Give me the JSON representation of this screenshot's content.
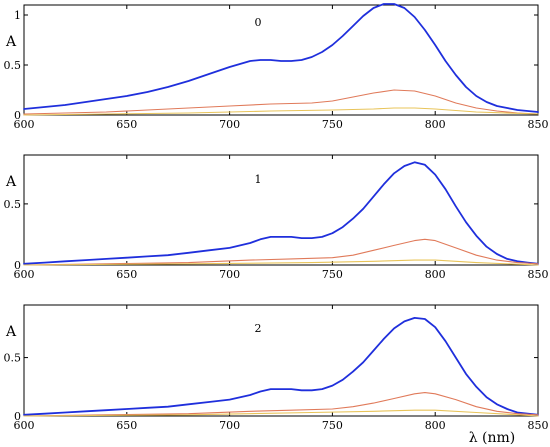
{
  "chart_data": [
    {
      "type": "line",
      "title": "0",
      "ylabel": "A",
      "xlabel": "",
      "xlim": [
        600,
        850
      ],
      "ylim": [
        0,
        1.1
      ],
      "xticks": [
        "600",
        "650",
        "700",
        "750",
        "800",
        "850"
      ],
      "yticks": [
        "0",
        "0.5",
        "1"
      ],
      "ytick_values": [
        0,
        0.5,
        1
      ],
      "series": [
        {
          "color": "#1f2fdc",
          "x": [
            600,
            610,
            620,
            630,
            640,
            650,
            660,
            670,
            680,
            690,
            700,
            705,
            710,
            715,
            720,
            725,
            730,
            735,
            740,
            745,
            750,
            755,
            760,
            765,
            770,
            775,
            780,
            785,
            790,
            795,
            800,
            805,
            810,
            815,
            820,
            825,
            830,
            835,
            840,
            845,
            850
          ],
          "y": [
            0.06,
            0.08,
            0.1,
            0.13,
            0.16,
            0.19,
            0.23,
            0.28,
            0.34,
            0.41,
            0.48,
            0.51,
            0.54,
            0.55,
            0.55,
            0.54,
            0.54,
            0.55,
            0.58,
            0.63,
            0.7,
            0.79,
            0.89,
            0.99,
            1.07,
            1.11,
            1.11,
            1.07,
            0.98,
            0.85,
            0.7,
            0.54,
            0.4,
            0.28,
            0.19,
            0.13,
            0.09,
            0.07,
            0.05,
            0.04,
            0.03
          ]
        },
        {
          "color": "#e07a5a",
          "x": [
            600,
            620,
            640,
            660,
            680,
            700,
            720,
            740,
            750,
            760,
            770,
            780,
            790,
            800,
            810,
            820,
            830,
            840,
            850
          ],
          "y": [
            0.01,
            0.02,
            0.03,
            0.05,
            0.07,
            0.09,
            0.11,
            0.12,
            0.14,
            0.18,
            0.22,
            0.25,
            0.24,
            0.19,
            0.12,
            0.07,
            0.04,
            0.02,
            0.01
          ]
        },
        {
          "color": "#e8c45a",
          "x": [
            600,
            640,
            680,
            720,
            750,
            770,
            780,
            790,
            800,
            820,
            850
          ],
          "y": [
            0.0,
            0.01,
            0.02,
            0.04,
            0.05,
            0.06,
            0.07,
            0.07,
            0.06,
            0.03,
            0.01
          ]
        }
      ]
    },
    {
      "type": "line",
      "title": "1",
      "ylabel": "A",
      "xlabel": "",
      "xlim": [
        600,
        850
      ],
      "ylim": [
        0,
        0.9
      ],
      "xticks": [
        "600",
        "650",
        "700",
        "750",
        "800",
        "850"
      ],
      "yticks": [
        "0",
        "0.5"
      ],
      "ytick_values": [
        0,
        0.5
      ],
      "series": [
        {
          "color": "#1f2fdc",
          "x": [
            600,
            610,
            620,
            630,
            640,
            650,
            660,
            670,
            680,
            690,
            700,
            710,
            715,
            720,
            725,
            730,
            735,
            740,
            745,
            750,
            755,
            760,
            765,
            770,
            775,
            780,
            785,
            790,
            795,
            800,
            805,
            810,
            815,
            820,
            825,
            830,
            835,
            840,
            845,
            850
          ],
          "y": [
            0.01,
            0.02,
            0.03,
            0.04,
            0.05,
            0.06,
            0.07,
            0.08,
            0.1,
            0.12,
            0.14,
            0.18,
            0.21,
            0.23,
            0.23,
            0.23,
            0.22,
            0.22,
            0.23,
            0.26,
            0.31,
            0.38,
            0.46,
            0.56,
            0.66,
            0.75,
            0.81,
            0.84,
            0.82,
            0.74,
            0.62,
            0.48,
            0.35,
            0.24,
            0.15,
            0.09,
            0.05,
            0.03,
            0.02,
            0.01
          ]
        },
        {
          "color": "#e07a5a",
          "x": [
            600,
            640,
            680,
            710,
            730,
            750,
            760,
            770,
            780,
            790,
            795,
            800,
            810,
            820,
            830,
            840,
            850
          ],
          "y": [
            0.0,
            0.01,
            0.02,
            0.04,
            0.05,
            0.06,
            0.08,
            0.12,
            0.16,
            0.2,
            0.21,
            0.2,
            0.14,
            0.08,
            0.04,
            0.02,
            0.01
          ]
        },
        {
          "color": "#e8c45a",
          "x": [
            600,
            680,
            740,
            770,
            790,
            800,
            820,
            850
          ],
          "y": [
            0.0,
            0.01,
            0.02,
            0.03,
            0.04,
            0.04,
            0.02,
            0.0
          ]
        }
      ]
    },
    {
      "type": "line",
      "title": "2",
      "ylabel": "A",
      "xlabel": "λ (nm)",
      "xlim": [
        600,
        850
      ],
      "ylim": [
        0,
        0.95
      ],
      "xticks": [
        "600",
        "650",
        "700",
        "750",
        "800",
        "850"
      ],
      "yticks": [
        "0",
        "0.5"
      ],
      "ytick_values": [
        0,
        0.5
      ],
      "series": [
        {
          "color": "#1f2fdc",
          "x": [
            600,
            610,
            620,
            630,
            640,
            650,
            660,
            670,
            680,
            690,
            700,
            710,
            715,
            720,
            725,
            730,
            735,
            740,
            745,
            750,
            755,
            760,
            765,
            770,
            775,
            780,
            785,
            790,
            795,
            800,
            805,
            810,
            815,
            820,
            825,
            830,
            835,
            840,
            845,
            850
          ],
          "y": [
            0.01,
            0.02,
            0.03,
            0.04,
            0.05,
            0.06,
            0.07,
            0.08,
            0.1,
            0.12,
            0.14,
            0.18,
            0.21,
            0.23,
            0.23,
            0.23,
            0.22,
            0.22,
            0.23,
            0.26,
            0.31,
            0.38,
            0.46,
            0.56,
            0.66,
            0.75,
            0.81,
            0.84,
            0.83,
            0.76,
            0.64,
            0.5,
            0.36,
            0.25,
            0.16,
            0.1,
            0.06,
            0.03,
            0.02,
            0.01
          ]
        },
        {
          "color": "#e07a5a",
          "x": [
            600,
            640,
            680,
            710,
            730,
            750,
            760,
            770,
            780,
            790,
            795,
            800,
            810,
            820,
            830,
            840,
            850
          ],
          "y": [
            0.0,
            0.01,
            0.02,
            0.04,
            0.05,
            0.06,
            0.08,
            0.11,
            0.15,
            0.19,
            0.2,
            0.19,
            0.14,
            0.08,
            0.04,
            0.02,
            0.01
          ]
        },
        {
          "color": "#e8c45a",
          "x": [
            600,
            680,
            740,
            770,
            790,
            800,
            820,
            850
          ],
          "y": [
            0.0,
            0.01,
            0.03,
            0.04,
            0.05,
            0.05,
            0.03,
            0.0
          ]
        }
      ]
    }
  ]
}
